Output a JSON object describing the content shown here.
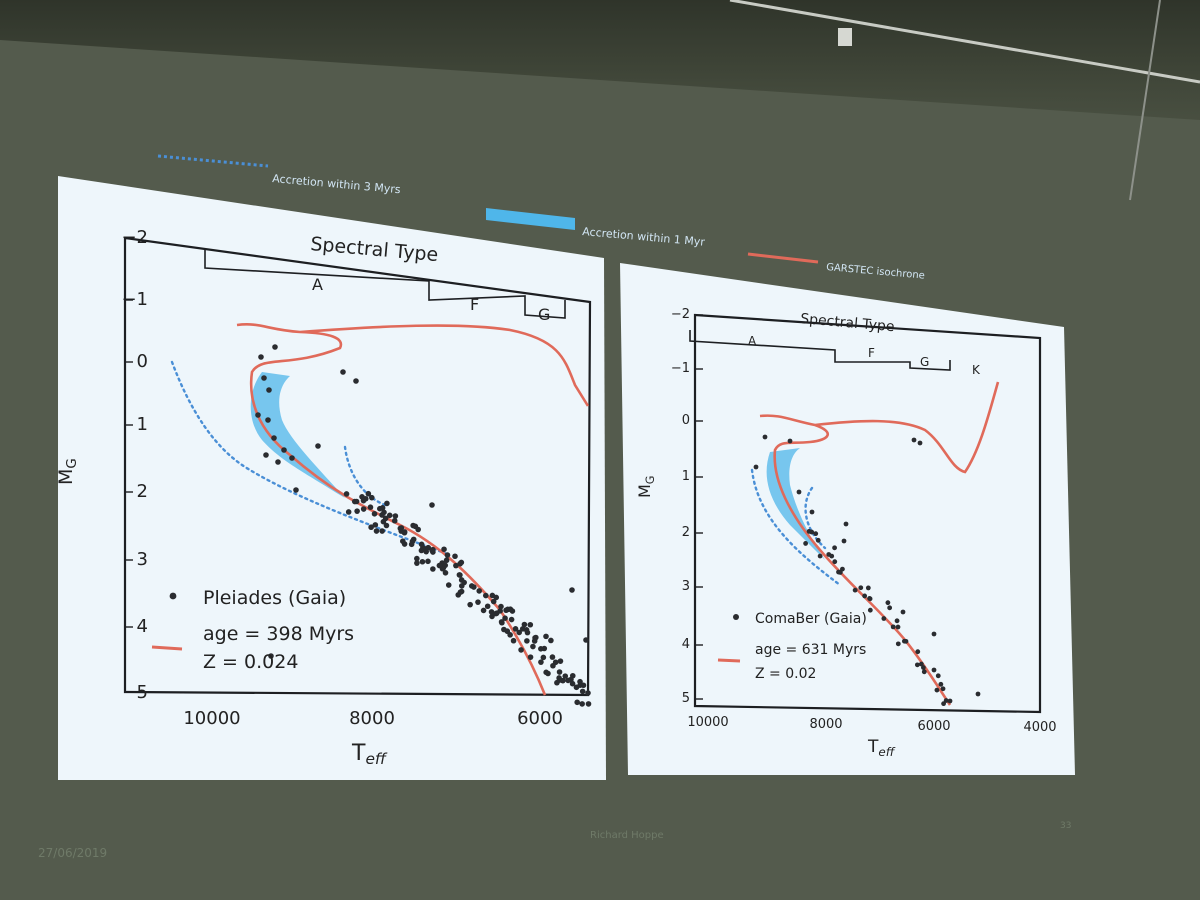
{
  "slide": {
    "legend": {
      "dotted": "Accretion within 3 Myrs",
      "band": "Accretion within 1 Myr",
      "line": "GARSTEC isochrone"
    },
    "footer": {
      "date": "27/06/2019",
      "author": "Richard Hoppe",
      "page": "33"
    },
    "colors": {
      "dotted": "#4a8fd6",
      "band": "#4fb6ea",
      "isochrone": "#e06a5a",
      "stars": "#2a2c30"
    }
  },
  "plots": [
    {
      "name": "pleiades",
      "spectral_title": "Spectral Type",
      "spectral_labels": [
        "A",
        "F",
        "G"
      ],
      "y_label": "M",
      "y_sub": "G",
      "x_label": "T",
      "x_sub": "eff",
      "y_ticks": [
        "−2",
        "−1",
        "0",
        "1",
        "2",
        "3",
        "4",
        "5"
      ],
      "x_ticks": [
        "10000",
        "8000",
        "6000"
      ],
      "legend_cluster": "Pleiades (Gaia)",
      "legend_age": "age = 398 Myrs",
      "legend_z": "Z = 0.024"
    },
    {
      "name": "comaber",
      "spectral_title": "Spectral Type",
      "spectral_labels": [
        "A",
        "F",
        "G",
        "K"
      ],
      "y_label": "M",
      "y_sub": "G",
      "x_label": "T",
      "x_sub": "eff",
      "y_ticks": [
        "−2",
        "−1",
        "0",
        "1",
        "2",
        "3",
        "4",
        "5"
      ],
      "x_ticks": [
        "10000",
        "8000",
        "6000",
        "4000"
      ],
      "legend_cluster": "ComaBer (Gaia)",
      "legend_age": "age = 631 Myrs",
      "legend_z": "Z = 0.02"
    }
  ]
}
